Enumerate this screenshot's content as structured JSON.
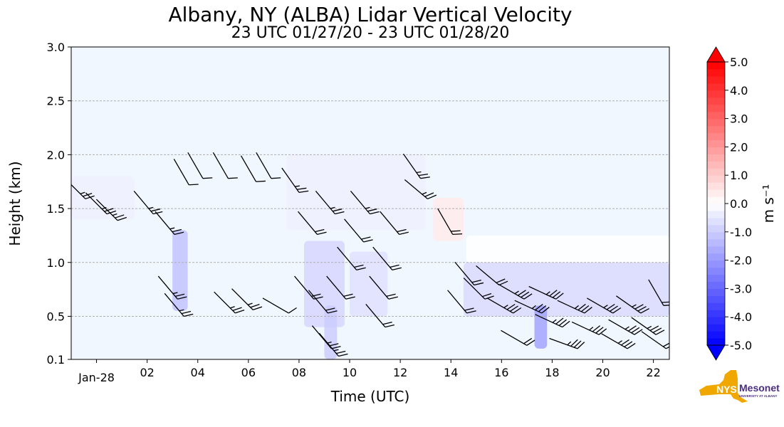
{
  "chart_data": {
    "type": "heatmap",
    "title": "Albany, NY (ALBA) Lidar Vertical Velocity",
    "subtitle": "23 UTC 01/27/20 - 23 UTC 01/28/20",
    "xlabel": "Time (UTC)",
    "ylabel": "Height (km)",
    "xlim_hours_from_00utc_jan28": [
      -1,
      22.63
    ],
    "ylim": [
      0.1,
      3.0
    ],
    "x_ticks": [
      {
        "h": 0,
        "label": "Jan-28"
      },
      {
        "h": 2,
        "label": "02"
      },
      {
        "h": 4,
        "label": "04"
      },
      {
        "h": 6,
        "label": "06"
      },
      {
        "h": 8,
        "label": "08"
      },
      {
        "h": 10,
        "label": "10"
      },
      {
        "h": 12,
        "label": "12"
      },
      {
        "h": 14,
        "label": "14"
      },
      {
        "h": 16,
        "label": "16"
      },
      {
        "h": 18,
        "label": "18"
      },
      {
        "h": 20,
        "label": "20"
      },
      {
        "h": 22,
        "label": "22"
      }
    ],
    "y_ticks": [
      {
        "v": 0.1,
        "label": "0.1"
      },
      {
        "v": 0.5,
        "label": "0.5"
      },
      {
        "v": 1.0,
        "label": "1.0"
      },
      {
        "v": 1.5,
        "label": "1.5"
      },
      {
        "v": 2.0,
        "label": "2.0"
      },
      {
        "v": 2.5,
        "label": "2.5"
      },
      {
        "v": 3.0,
        "label": "3.0"
      }
    ],
    "grid": "horizontal dashed",
    "background_value": -0.1,
    "velocity_patches": [
      {
        "h": [
          -1,
          1.5
        ],
        "z": [
          1.4,
          1.8
        ],
        "v": -0.3
      },
      {
        "h": [
          7.5,
          13
        ],
        "z": [
          1.3,
          2.0
        ],
        "v": -0.3
      },
      {
        "h": [
          3.0,
          3.6
        ],
        "z": [
          0.55,
          1.3
        ],
        "v": -1.2
      },
      {
        "h": [
          8.2,
          9.8
        ],
        "z": [
          0.4,
          1.2
        ],
        "v": -0.8
      },
      {
        "h": [
          9.0,
          9.5
        ],
        "z": [
          0.1,
          0.6
        ],
        "v": -1.0
      },
      {
        "h": [
          10.0,
          11.5
        ],
        "z": [
          0.5,
          1.1
        ],
        "v": -0.6
      },
      {
        "h": [
          14.5,
          22.63
        ],
        "z": [
          0.5,
          1.0
        ],
        "v": -0.7
      },
      {
        "h": [
          14.6,
          22.63
        ],
        "z": [
          1.0,
          1.25
        ],
        "v": 0.0
      },
      {
        "h": [
          17.3,
          17.8
        ],
        "z": [
          0.2,
          0.6
        ],
        "v": -1.8
      },
      {
        "h": [
          13.3,
          14.5
        ],
        "z": [
          1.2,
          1.6
        ],
        "v": 0.4
      }
    ],
    "wind_barbs": [
      [
        -0.44,
        1.59,
        15,
        315
      ],
      [
        0.41,
        1.45,
        15,
        315
      ],
      [
        0.83,
        1.39,
        15,
        315
      ],
      [
        2.24,
        1.45,
        15,
        320
      ],
      [
        3.08,
        1.26,
        15,
        320
      ],
      [
        3.2,
        0.66,
        15,
        320
      ],
      [
        3.45,
        0.5,
        15,
        320
      ],
      [
        5.48,
        0.53,
        15,
        315
      ],
      [
        6.18,
        0.56,
        15,
        315
      ],
      [
        7.59,
        0.53,
        10,
        300
      ],
      [
        8.58,
        0.66,
        20,
        320
      ],
      [
        8.72,
        1.26,
        20,
        320
      ],
      [
        9.14,
        0.53,
        20,
        320
      ],
      [
        9.28,
        0.2,
        15,
        320
      ],
      [
        9.56,
        0.13,
        15,
        320
      ],
      [
        9.85,
        0.66,
        20,
        320
      ],
      [
        10.27,
        0.93,
        20,
        320
      ],
      [
        10.55,
        1.19,
        20,
        320
      ],
      [
        11.4,
        0.4,
        20,
        320
      ],
      [
        11.54,
        0.66,
        20,
        320
      ],
      [
        11.68,
        0.93,
        20,
        320
      ],
      [
        11.96,
        1.26,
        20,
        320
      ],
      [
        12.8,
        1.78,
        15,
        325
      ],
      [
        13.08,
        1.59,
        15,
        310
      ],
      [
        14.07,
        1.26,
        20,
        330
      ],
      [
        14.63,
        0.53,
        20,
        320
      ],
      [
        14.92,
        0.79,
        20,
        320
      ],
      [
        15.34,
        0.66,
        20,
        315
      ],
      [
        15.9,
        0.79,
        20,
        310
      ],
      [
        16.46,
        0.53,
        25,
        300
      ],
      [
        16.89,
        0.66,
        25,
        300
      ],
      [
        17.0,
        0.23,
        20,
        300
      ],
      [
        17.59,
        0.53,
        25,
        295
      ],
      [
        18.15,
        0.66,
        25,
        295
      ],
      [
        18.4,
        0.4,
        25,
        295
      ],
      [
        19.0,
        0.2,
        25,
        290
      ],
      [
        19.28,
        0.53,
        25,
        295
      ],
      [
        19.85,
        0.33,
        25,
        295
      ],
      [
        20.4,
        0.53,
        25,
        300
      ],
      [
        20.97,
        0.2,
        25,
        300
      ],
      [
        21.25,
        0.33,
        25,
        300
      ],
      [
        21.5,
        0.53,
        25,
        305
      ],
      [
        22.1,
        0.33,
        25,
        305
      ],
      [
        22.5,
        0.2,
        20,
        305
      ],
      [
        22.4,
        0.6,
        20,
        330
      ],
      [
        3.65,
        1.72,
        10,
        330
      ],
      [
        4.2,
        1.78,
        10,
        330
      ],
      [
        5.2,
        1.78,
        10,
        330
      ],
      [
        6.3,
        1.75,
        10,
        330
      ],
      [
        6.9,
        1.78,
        10,
        330
      ],
      [
        8.0,
        1.65,
        15,
        325
      ],
      [
        9.42,
        1.45,
        15,
        320
      ],
      [
        10.8,
        1.45,
        15,
        320
      ]
    ],
    "colorbar": {
      "label": "m s⁻¹",
      "range": [
        -5.0,
        5.0
      ],
      "extend": "both",
      "colormap": "bwr",
      "ticks": [
        "5.0",
        "4.0",
        "3.0",
        "2.0",
        "1.0",
        "0.0",
        "-1.0",
        "-2.0",
        "-3.0",
        "-4.0",
        "-5.0"
      ]
    }
  },
  "logo": {
    "nys": "NYS",
    "name": "Mesonet",
    "sub": "UNIVERSITY AT ALBANY",
    "gold": "#f0a800",
    "purple": "#4b2e83"
  }
}
